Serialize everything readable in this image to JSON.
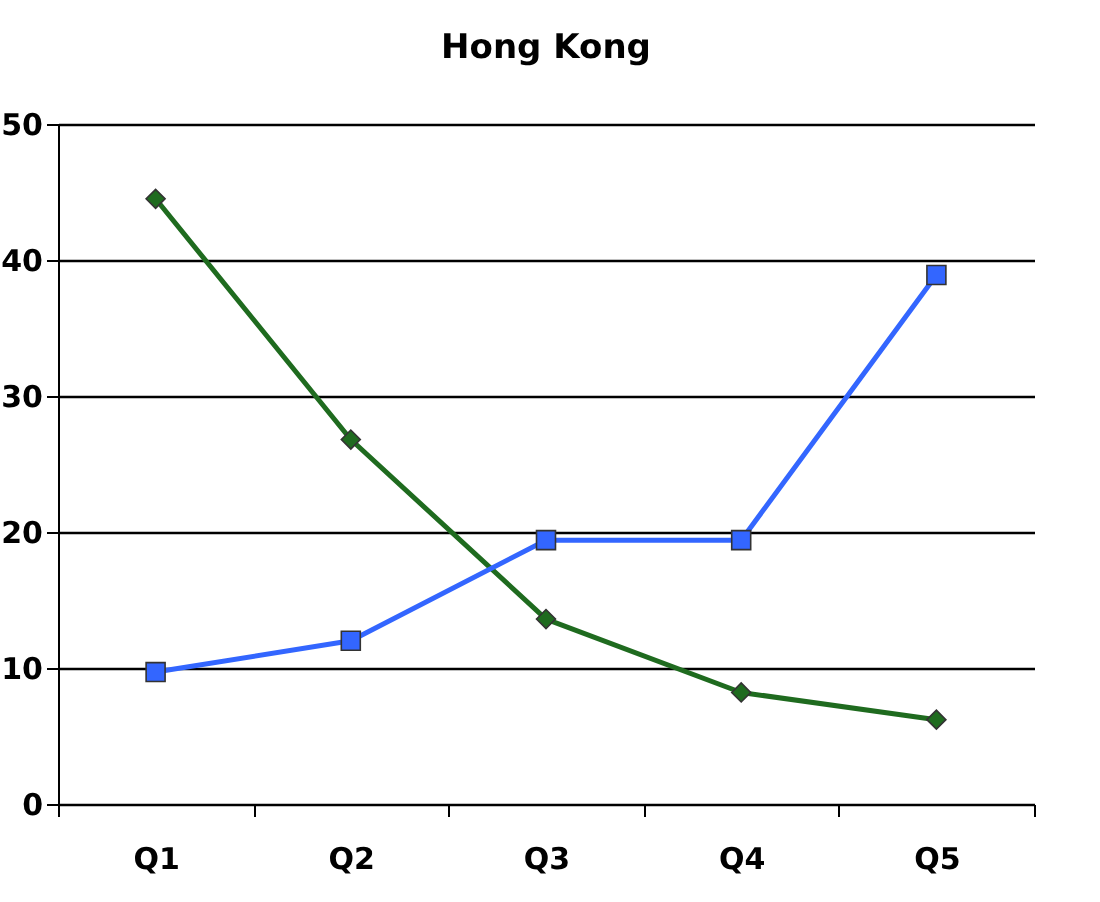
{
  "chart_data": {
    "type": "line",
    "title": "Hong Kong",
    "categories": [
      "Q1",
      "Q2",
      "Q3",
      "Q4",
      "Q5"
    ],
    "series": [
      {
        "color": "#1f6b1f",
        "marker": "diamond",
        "values": [
          44.5,
          26.8,
          13.6,
          8.2,
          6.2
        ]
      },
      {
        "color": "#3366ff",
        "marker": "square",
        "values": [
          9.7,
          12.0,
          19.4,
          19.4,
          38.9
        ]
      }
    ],
    "ylim": [
      0,
      50
    ],
    "yticks": [
      0,
      10,
      20,
      30,
      40,
      50
    ],
    "grid": "y",
    "legend": false
  }
}
